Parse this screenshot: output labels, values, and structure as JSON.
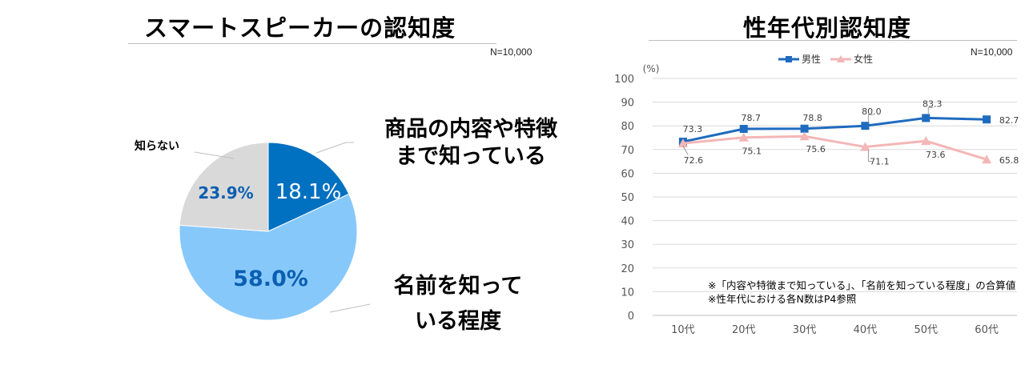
{
  "left": {
    "title": "スマートスピーカーの認知度",
    "n_label": "N=10,000"
  },
  "right": {
    "title": "性年代別認知度",
    "n_label": "N=10,000",
    "unit": "(%)",
    "notes": [
      "※「内容や特徴まで知っている」、「名前を知っている程度」の合算値",
      "※性年代における各N数はP4参照"
    ]
  },
  "chart_data": [
    {
      "type": "pie",
      "title": "スマートスピーカーの認知度",
      "slices": [
        {
          "label_lines": [
            "商品の内容や特徴",
            "まで知っている"
          ],
          "value": 18.1,
          "value_label": "18.1%",
          "color": "#0070c0"
        },
        {
          "label_lines": [
            "名前を知って",
            "いる程度"
          ],
          "value": 58.0,
          "value_label": "58.0%",
          "color": "#87c8fb"
        },
        {
          "label_lines": [
            "知らない"
          ],
          "value": 23.9,
          "value_label": "23.9%",
          "color": "#d9d9d9"
        }
      ]
    },
    {
      "type": "line",
      "title": "性年代別認知度",
      "categories": [
        "10代",
        "20代",
        "30代",
        "40代",
        "50代",
        "60代"
      ],
      "ylim": [
        0,
        100
      ],
      "yticks": [
        0,
        10,
        20,
        30,
        40,
        50,
        60,
        70,
        80,
        90,
        100
      ],
      "ylabel": "(%)",
      "legend_position": "top",
      "grid": true,
      "series": [
        {
          "name": "男性",
          "color": "#1f6bbf",
          "marker": "square",
          "values": [
            73.3,
            78.7,
            78.8,
            80.0,
            83.3,
            82.7
          ],
          "labels": [
            "73.3",
            "78.7",
            "78.8",
            "80.0",
            "83.3",
            "82.7"
          ]
        },
        {
          "name": "女性",
          "color": "#f4b6b6",
          "marker": "triangle",
          "values": [
            72.6,
            75.1,
            75.6,
            71.1,
            73.6,
            65.8
          ],
          "labels": [
            "72.6",
            "75.1",
            "75.6",
            "71.1",
            "73.6",
            "65.8"
          ]
        }
      ]
    }
  ]
}
